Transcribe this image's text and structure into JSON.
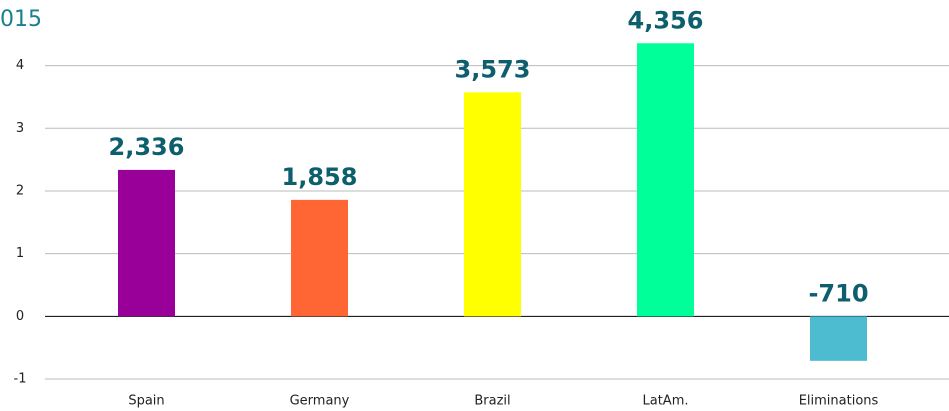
{
  "chart_data": {
    "type": "bar",
    "title": "015",
    "categories": [
      "Spain",
      "Germany",
      "Brazil",
      "LatAm.",
      "Eliminations"
    ],
    "values": [
      2.336,
      1.858,
      3.573,
      4.356,
      -0.71
    ],
    "value_labels": [
      "2,336",
      "1,858",
      "3,573",
      "4,356",
      "-710"
    ],
    "colors": [
      "#990099",
      "#ff6633",
      "#ffff00",
      "#00ff99",
      "#4dbbd0"
    ],
    "ylim": [
      -1,
      4.6
    ],
    "yticks": [
      -1,
      0,
      1,
      2,
      3,
      4
    ],
    "grid": true
  }
}
